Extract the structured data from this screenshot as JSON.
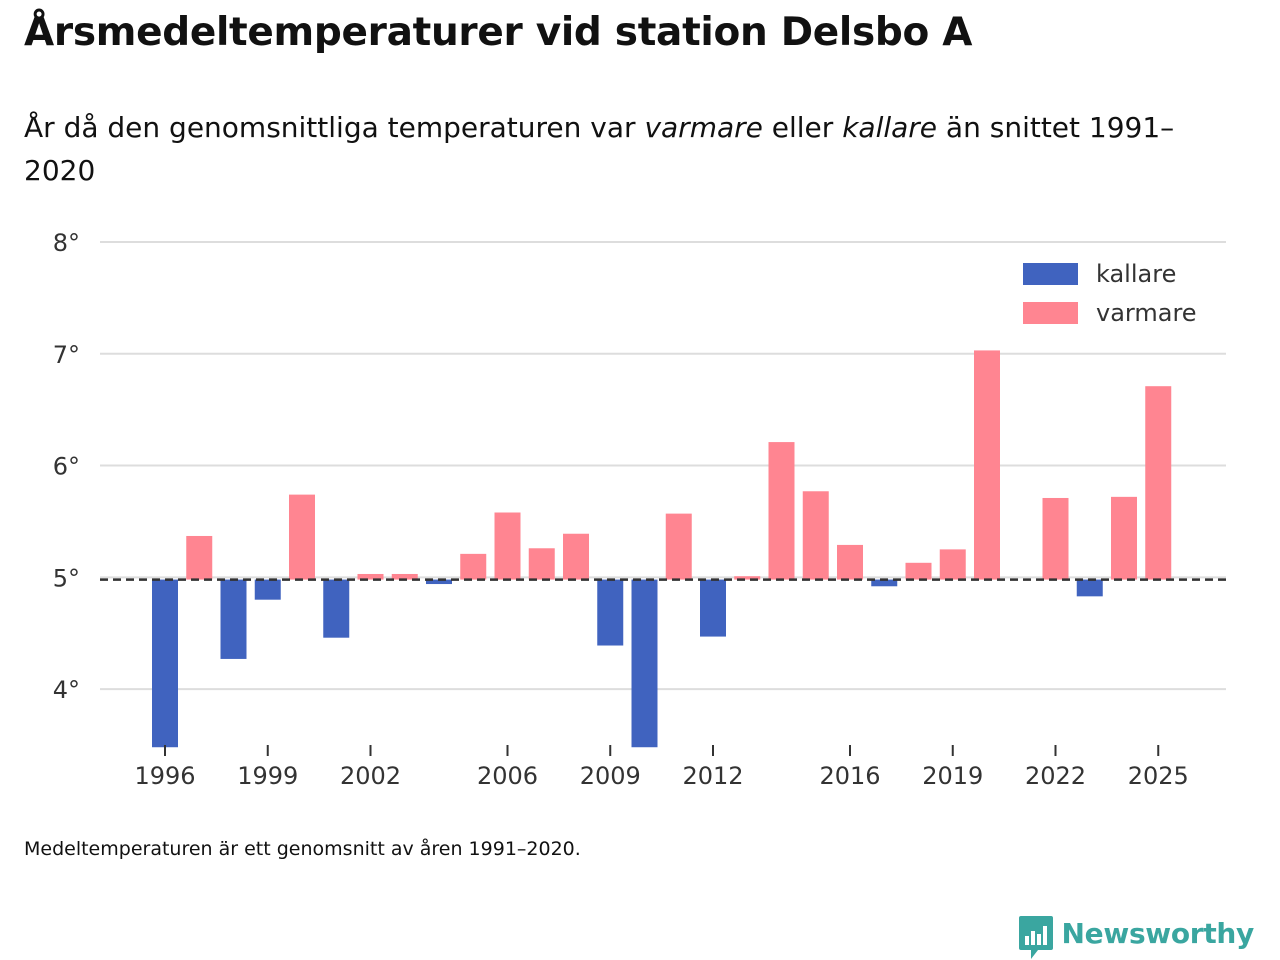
{
  "header": {
    "title": "Årsmedeltemperaturer vid station Delsbo A",
    "subtitle_before": "År då den genomsnittliga temperaturen var ",
    "subtitle_warm": "varmare",
    "subtitle_middle": " eller ",
    "subtitle_cold": "kallare",
    "subtitle_after": " än snittet 1991–2020"
  },
  "footnote": "Medeltemperaturen är ett genomsnitt av åren 1991–2020.",
  "brand": {
    "name": "Newsworthy",
    "icon": "newsworthy-logo-icon",
    "color": "#3aa6a0"
  },
  "chart_data": {
    "type": "bar",
    "title": "Årsmedeltemperaturer vid station Delsbo A",
    "baseline": 4.98,
    "baseline_style": "dashed",
    "ylim": [
      3.5,
      8
    ],
    "yticks": [
      4,
      5,
      6,
      7,
      8
    ],
    "ytick_suffix": "°",
    "xlabel": "",
    "ylabel": "",
    "grid": true,
    "legend_position": "top-right",
    "colors": {
      "kallare": "#4063bf",
      "varmare": "#ff8591"
    },
    "legend": [
      {
        "key": "kallare",
        "label": "kallare"
      },
      {
        "key": "varmare",
        "label": "varmare"
      }
    ],
    "xticks": [
      1996,
      1999,
      2002,
      2006,
      2009,
      2012,
      2016,
      2019,
      2022,
      2025
    ],
    "years": [
      1996,
      1997,
      1998,
      1999,
      2000,
      2001,
      2002,
      2003,
      2004,
      2005,
      2006,
      2007,
      2008,
      2009,
      2010,
      2011,
      2012,
      2013,
      2014,
      2015,
      2016,
      2017,
      2018,
      2019,
      2020,
      2021,
      2022,
      2023,
      2024,
      2025
    ],
    "values": [
      3.48,
      5.37,
      4.27,
      4.8,
      5.74,
      4.46,
      5.03,
      5.03,
      4.94,
      5.21,
      5.58,
      5.26,
      5.39,
      4.39,
      3.48,
      5.57,
      4.47,
      5.01,
      6.21,
      5.77,
      5.29,
      4.92,
      5.13,
      5.25,
      7.03,
      null,
      5.71,
      4.83,
      5.72,
      6.71
    ]
  }
}
